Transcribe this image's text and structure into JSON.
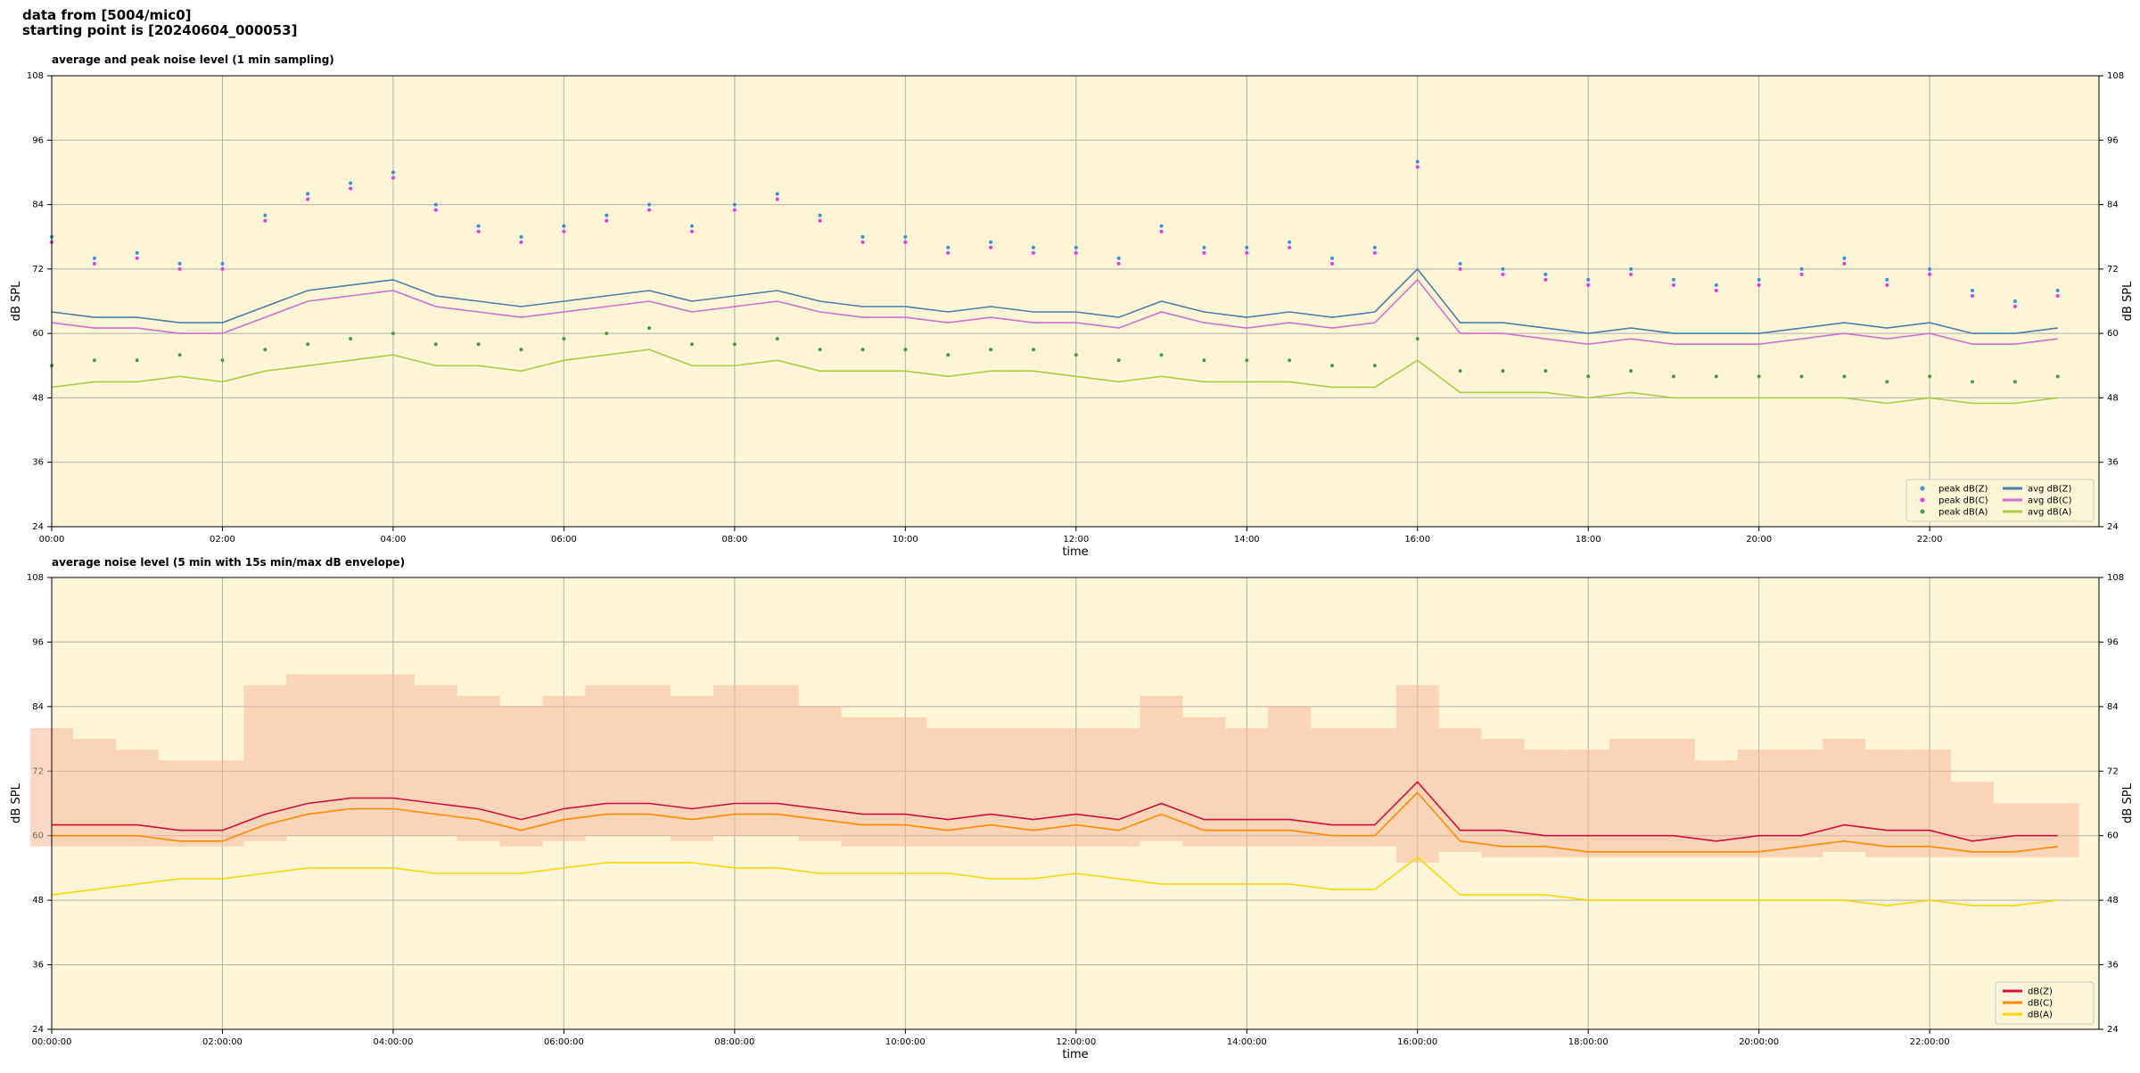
{
  "header": {
    "line1": "data from [5004/mic0]",
    "line2": "starting point is [20240604_000053]"
  },
  "chart_data": [
    {
      "type": "line",
      "title": "average and peak noise level (1 min sampling)",
      "xlabel": "time",
      "ylabel": "dB SPL",
      "xlim": [
        "00:00",
        "23:59"
      ],
      "ylim": [
        24,
        108
      ],
      "yticks": [
        24,
        36,
        48,
        60,
        72,
        84,
        96,
        108
      ],
      "xticks": [
        "00:00",
        "02:00",
        "04:00",
        "06:00",
        "08:00",
        "10:00",
        "12:00",
        "14:00",
        "16:00",
        "18:00",
        "20:00",
        "22:00"
      ],
      "grid": true,
      "background": "#fdf5d8",
      "legend": "lower right",
      "legend_columns": 2,
      "x": [
        "00:00",
        "00:30",
        "01:00",
        "01:30",
        "02:00",
        "02:30",
        "03:00",
        "03:30",
        "04:00",
        "04:30",
        "05:00",
        "05:30",
        "06:00",
        "06:30",
        "07:00",
        "07:30",
        "08:00",
        "08:30",
        "09:00",
        "09:30",
        "10:00",
        "10:30",
        "11:00",
        "11:30",
        "12:00",
        "12:30",
        "13:00",
        "13:30",
        "14:00",
        "14:30",
        "15:00",
        "15:30",
        "16:00",
        "16:30",
        "17:00",
        "17:30",
        "18:00",
        "18:30",
        "19:00",
        "19:30",
        "20:00",
        "20:30",
        "21:00",
        "21:30",
        "22:00",
        "22:30",
        "23:00",
        "23:30"
      ],
      "series": [
        {
          "name": "peak dB(Z)",
          "type": "scatter",
          "color": "#3d8fd8",
          "values": [
            78,
            74,
            75,
            73,
            73,
            82,
            86,
            88,
            90,
            84,
            80,
            78,
            80,
            82,
            84,
            80,
            84,
            86,
            82,
            78,
            78,
            76,
            77,
            76,
            76,
            74,
            80,
            76,
            76,
            77,
            74,
            76,
            92,
            73,
            72,
            71,
            70,
            72,
            70,
            69,
            70,
            72,
            74,
            70,
            72,
            68,
            66,
            68
          ]
        },
        {
          "name": "peak dB(C)",
          "type": "scatter",
          "color": "#e040e0",
          "values": [
            77,
            73,
            74,
            72,
            72,
            81,
            85,
            87,
            89,
            83,
            79,
            77,
            79,
            81,
            83,
            79,
            83,
            85,
            81,
            77,
            77,
            75,
            76,
            75,
            75,
            73,
            79,
            75,
            75,
            76,
            73,
            75,
            91,
            72,
            71,
            70,
            69,
            71,
            69,
            68,
            69,
            71,
            73,
            69,
            71,
            67,
            65,
            67
          ]
        },
        {
          "name": "peak dB(A)",
          "type": "scatter",
          "color": "#4a9a4a",
          "values": [
            54,
            55,
            55,
            56,
            55,
            57,
            58,
            59,
            60,
            58,
            58,
            57,
            59,
            60,
            61,
            58,
            58,
            59,
            57,
            57,
            57,
            56,
            57,
            57,
            56,
            55,
            56,
            55,
            55,
            55,
            54,
            54,
            59,
            53,
            53,
            53,
            52,
            53,
            52,
            52,
            52,
            52,
            52,
            51,
            52,
            51,
            51,
            52
          ]
        },
        {
          "name": "avg dB(Z)",
          "type": "line",
          "color": "#4a7fa8",
          "values": [
            64,
            63,
            63,
            62,
            62,
            65,
            68,
            69,
            70,
            67,
            66,
            65,
            66,
            67,
            68,
            66,
            67,
            68,
            66,
            65,
            65,
            64,
            65,
            64,
            64,
            63,
            66,
            64,
            63,
            64,
            63,
            64,
            72,
            62,
            62,
            61,
            60,
            61,
            60,
            60,
            60,
            61,
            62,
            61,
            62,
            60,
            60,
            61
          ]
        },
        {
          "name": "avg dB(C)",
          "type": "line",
          "color": "#d070d0",
          "values": [
            62,
            61,
            61,
            60,
            60,
            63,
            66,
            67,
            68,
            65,
            64,
            63,
            64,
            65,
            66,
            64,
            65,
            66,
            64,
            63,
            63,
            62,
            63,
            62,
            62,
            61,
            64,
            62,
            61,
            62,
            61,
            62,
            70,
            60,
            60,
            59,
            58,
            59,
            58,
            58,
            58,
            59,
            60,
            59,
            60,
            58,
            58,
            59
          ]
        },
        {
          "name": "avg dB(A)",
          "type": "line",
          "color": "#a8d040",
          "values": [
            50,
            51,
            51,
            52,
            51,
            53,
            54,
            55,
            56,
            54,
            54,
            53,
            55,
            56,
            57,
            54,
            54,
            55,
            53,
            53,
            53,
            52,
            53,
            53,
            52,
            51,
            52,
            51,
            51,
            51,
            50,
            50,
            55,
            49,
            49,
            49,
            48,
            49,
            48,
            48,
            48,
            48,
            48,
            47,
            48,
            47,
            47,
            48
          ]
        }
      ]
    },
    {
      "type": "line",
      "title": "average noise level (5 min with 15s min/max dB envelope)",
      "xlabel": "time",
      "ylabel": "dB SPL",
      "xlim": [
        "00:00",
        "23:59"
      ],
      "ylim": [
        24,
        108
      ],
      "yticks": [
        24,
        36,
        48,
        60,
        72,
        84,
        96,
        108
      ],
      "xticks": [
        {
          "value": "00:00",
          "label": "00:00:00"
        },
        {
          "value": "02:00",
          "label": "02:00:00"
        },
        {
          "value": "04:00",
          "label": "04:00:00"
        },
        {
          "value": "06:00",
          "label": "06:00:00"
        },
        {
          "value": "08:00",
          "label": "08:00:00"
        },
        {
          "value": "10:00",
          "label": "10:00:00"
        },
        {
          "value": "12:00",
          "label": "12:00:00"
        },
        {
          "value": "14:00",
          "label": "14:00:00"
        },
        {
          "value": "16:00",
          "label": "16:00:00"
        },
        {
          "value": "18:00",
          "label": "18:00:00"
        },
        {
          "value": "20:00",
          "label": "20:00:00"
        },
        {
          "value": "22:00",
          "label": "22:00:00"
        }
      ],
      "grid": true,
      "background": "#fdf5d8",
      "legend": "lower right",
      "legend_columns": 1,
      "x": [
        "00:00",
        "00:30",
        "01:00",
        "01:30",
        "02:00",
        "02:30",
        "03:00",
        "03:30",
        "04:00",
        "04:30",
        "05:00",
        "05:30",
        "06:00",
        "06:30",
        "07:00",
        "07:30",
        "08:00",
        "08:30",
        "09:00",
        "09:30",
        "10:00",
        "10:30",
        "11:00",
        "11:30",
        "12:00",
        "12:30",
        "13:00",
        "13:30",
        "14:00",
        "14:30",
        "15:00",
        "15:30",
        "16:00",
        "16:30",
        "17:00",
        "17:30",
        "18:00",
        "18:30",
        "19:00",
        "19:30",
        "20:00",
        "20:30",
        "21:00",
        "21:30",
        "22:00",
        "22:30",
        "23:00",
        "23:30"
      ],
      "envelope": {
        "color": "#f6b89a",
        "lower": [
          58,
          58,
          58,
          58,
          58,
          59,
          60,
          60,
          60,
          60,
          59,
          58,
          59,
          60,
          60,
          59,
          60,
          60,
          59,
          58,
          58,
          58,
          58,
          58,
          58,
          58,
          59,
          58,
          58,
          58,
          58,
          58,
          55,
          57,
          56,
          56,
          56,
          56,
          56,
          56,
          56,
          56,
          57,
          56,
          56,
          56,
          56,
          56
        ],
        "upper": [
          80,
          78,
          76,
          74,
          74,
          88,
          90,
          90,
          90,
          88,
          86,
          84,
          86,
          88,
          88,
          86,
          88,
          88,
          84,
          82,
          82,
          80,
          80,
          80,
          80,
          80,
          86,
          82,
          80,
          84,
          80,
          80,
          88,
          80,
          78,
          76,
          76,
          78,
          78,
          74,
          76,
          76,
          78,
          76,
          76,
          70,
          66,
          66
        ]
      },
      "series": [
        {
          "name": "dB(Z)",
          "type": "line",
          "color": "#d0103a",
          "values": [
            62,
            62,
            62,
            61,
            61,
            64,
            66,
            67,
            67,
            66,
            65,
            63,
            65,
            66,
            66,
            65,
            66,
            66,
            65,
            64,
            64,
            63,
            64,
            63,
            64,
            63,
            66,
            63,
            63,
            63,
            62,
            62,
            70,
            61,
            61,
            60,
            60,
            60,
            60,
            59,
            60,
            60,
            62,
            61,
            61,
            59,
            60,
            60
          ]
        },
        {
          "name": "dB(C)",
          "type": "line",
          "color": "#ff8c00",
          "values": [
            60,
            60,
            60,
            59,
            59,
            62,
            64,
            65,
            65,
            64,
            63,
            61,
            63,
            64,
            64,
            63,
            64,
            64,
            63,
            62,
            62,
            61,
            62,
            61,
            62,
            61,
            64,
            61,
            61,
            61,
            60,
            60,
            68,
            59,
            58,
            58,
            57,
            57,
            57,
            57,
            57,
            58,
            59,
            58,
            58,
            57,
            57,
            58
          ]
        },
        {
          "name": "dB(A)",
          "type": "line",
          "color": "#ffd700",
          "values": [
            49,
            50,
            51,
            52,
            52,
            53,
            54,
            54,
            54,
            53,
            53,
            53,
            54,
            55,
            55,
            55,
            54,
            54,
            53,
            53,
            53,
            53,
            52,
            52,
            53,
            52,
            51,
            51,
            51,
            51,
            50,
            50,
            56,
            49,
            49,
            49,
            48,
            48,
            48,
            48,
            48,
            48,
            48,
            47,
            48,
            47,
            47,
            48
          ]
        }
      ]
    }
  ]
}
